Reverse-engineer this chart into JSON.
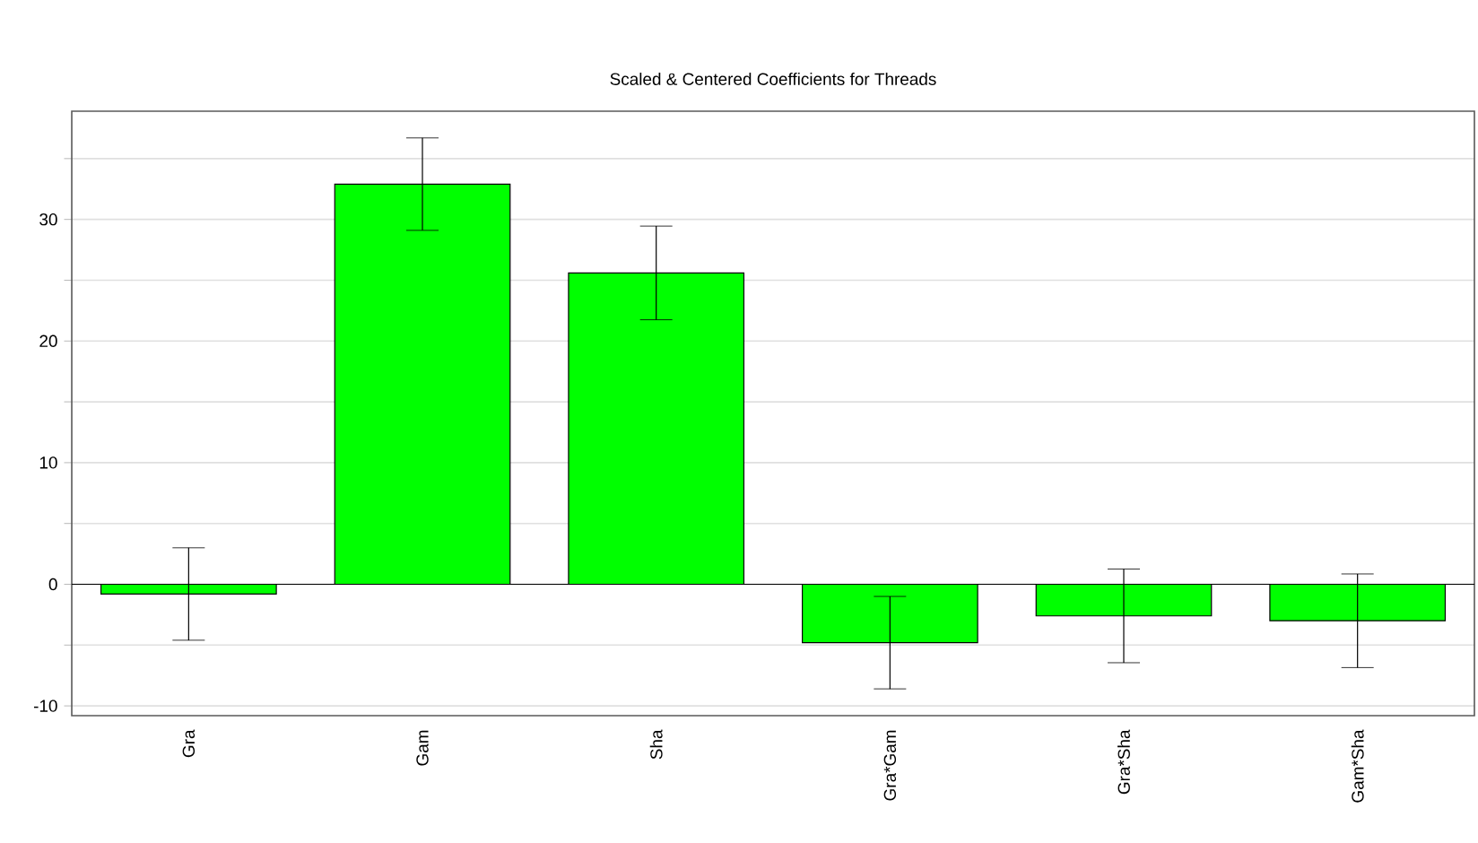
{
  "chart_data": {
    "type": "bar",
    "title": "Scaled & Centered Coefficients for Threads",
    "categories": [
      "Gra",
      "Gam",
      "Sha",
      "Gra*Gam",
      "Gra*Sha",
      "Gam*Sha"
    ],
    "values": [
      -0.8,
      32.9,
      25.6,
      -4.8,
      -2.6,
      -3.0
    ],
    "errors": [
      3.8,
      3.8,
      3.85,
      3.8,
      3.85,
      3.85
    ],
    "color": "#00ff00",
    "ylim": [
      -10.8,
      38.9
    ],
    "yticks": [
      -10,
      {
        "value": -5,
        "label": null
      },
      0,
      {
        "value": 5,
        "label": null
      },
      10,
      {
        "value": 15,
        "label": null
      },
      20,
      {
        "value": 25,
        "label": null
      },
      30,
      {
        "value": 35,
        "label": null
      }
    ],
    "grid": "y"
  }
}
